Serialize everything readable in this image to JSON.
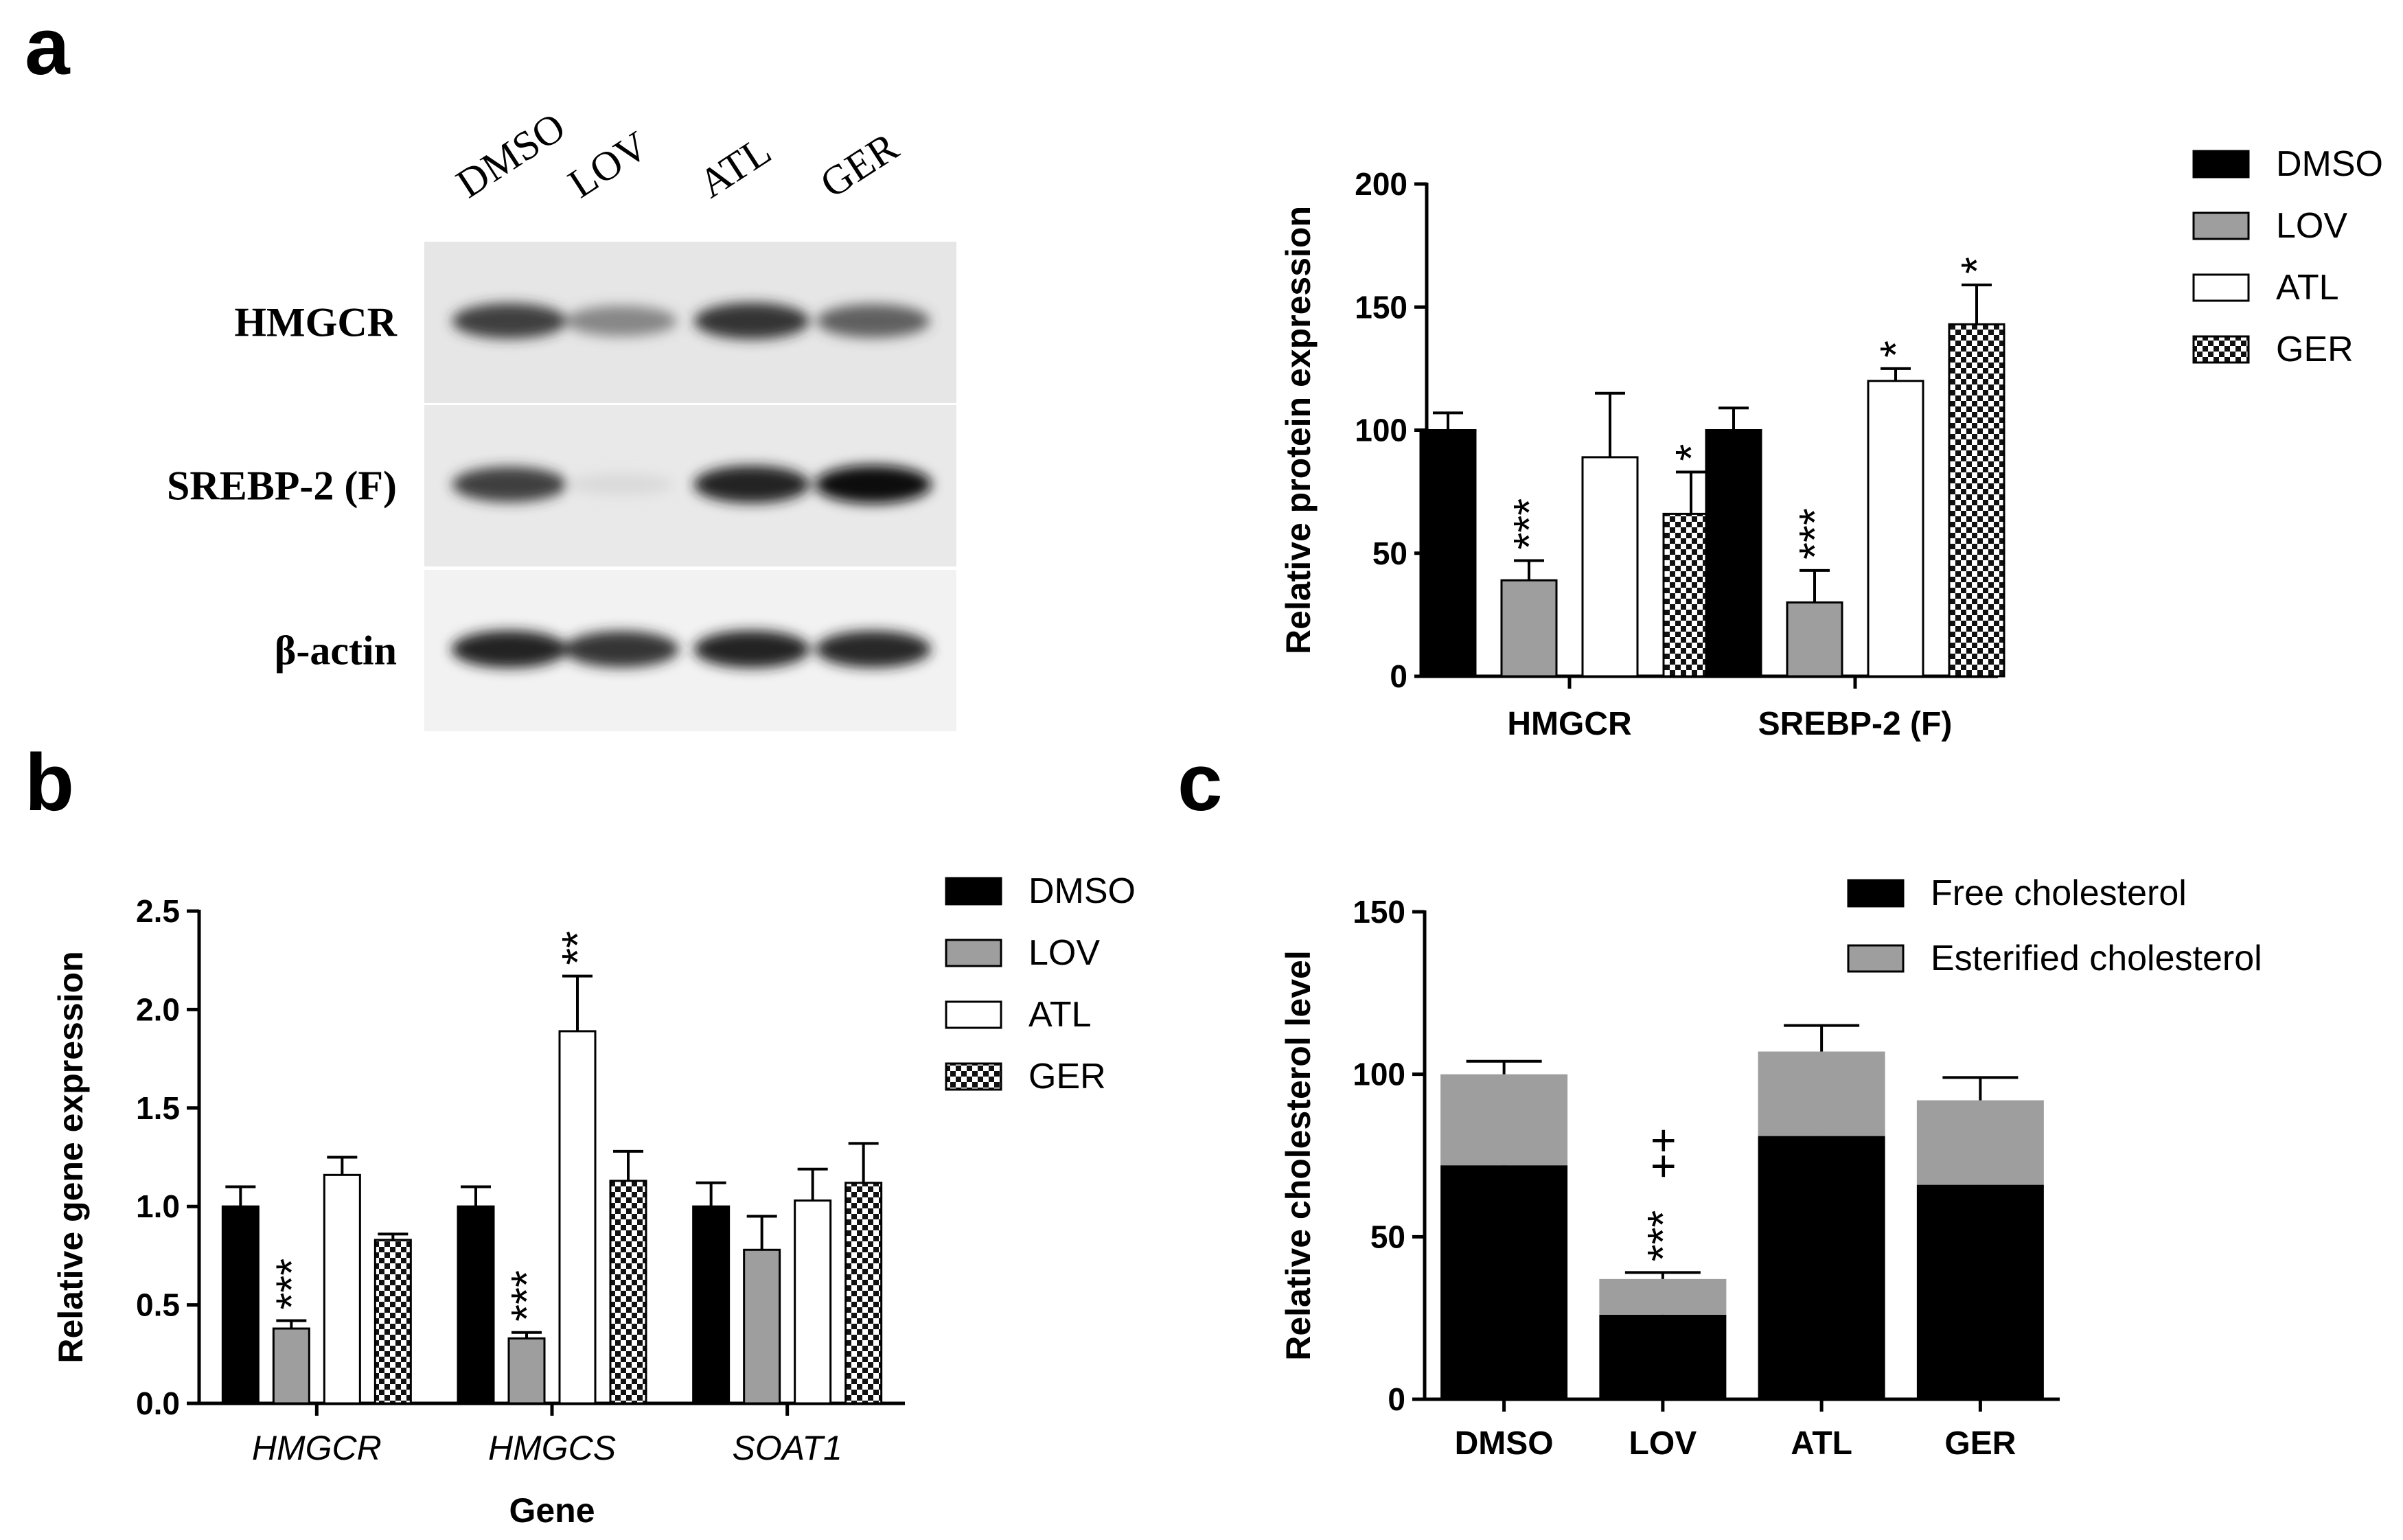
{
  "panels": {
    "a": "a",
    "b": "b",
    "c": "c"
  },
  "blot": {
    "lanes": [
      "DMSO",
      "LOV",
      "ATL",
      "GER"
    ],
    "rows": [
      {
        "label": "HMGCR",
        "band_intensity": [
          0.85,
          0.6,
          0.9,
          0.75
        ]
      },
      {
        "label": "SREBP-2 (F)",
        "band_intensity": [
          0.85,
          0.15,
          0.95,
          1.0
        ]
      },
      {
        "label": "β-actin",
        "band_intensity": [
          0.95,
          0.9,
          0.95,
          0.92
        ]
      }
    ]
  },
  "colors": {
    "DMSO": "#000000",
    "LOV": "#9e9e9e",
    "ATL": "#ffffff",
    "GER": "checkered",
    "Free cholesterol": "#000000",
    "Esterified cholesterol": "#9e9e9e"
  },
  "chart_data": [
    {
      "id": "a-chart",
      "type": "bar",
      "categories": [
        "HMGCR",
        "SREBP-2 (F)"
      ],
      "series": [
        {
          "name": "DMSO",
          "values": [
            100,
            100
          ],
          "errors": [
            7,
            9
          ]
        },
        {
          "name": "LOV",
          "values": [
            39,
            30
          ],
          "errors": [
            8,
            13
          ]
        },
        {
          "name": "ATL",
          "values": [
            89,
            120
          ],
          "errors": [
            26,
            5
          ]
        },
        {
          "name": "GER",
          "values": [
            66,
            143
          ],
          "errors": [
            17,
            16
          ]
        }
      ],
      "annotations": [
        {
          "category": "HMGCR",
          "series": "LOV",
          "text": "***"
        },
        {
          "category": "HMGCR",
          "series": "GER",
          "text": "*"
        },
        {
          "category": "SREBP-2 (F)",
          "series": "LOV",
          "text": "***"
        },
        {
          "category": "SREBP-2 (F)",
          "series": "ATL",
          "text": "*"
        },
        {
          "category": "SREBP-2 (F)",
          "series": "GER",
          "text": "*"
        }
      ],
      "ylabel": "Relative protein expression",
      "xlabel": "",
      "ylim": [
        0,
        200
      ],
      "yticks": [
        "0",
        "50",
        "100",
        "150",
        "200"
      ],
      "legend": "right",
      "legend_entries": [
        "DMSO",
        "LOV",
        "ATL",
        "GER"
      ]
    },
    {
      "id": "b-chart",
      "type": "bar",
      "categories": [
        "HMGCR",
        "HMGCS",
        "SOAT1"
      ],
      "series": [
        {
          "name": "DMSO",
          "values": [
            1.0,
            1.0,
            1.0
          ],
          "errors": [
            0.1,
            0.1,
            0.12
          ]
        },
        {
          "name": "LOV",
          "values": [
            0.38,
            0.33,
            0.78
          ],
          "errors": [
            0.04,
            0.03,
            0.17
          ]
        },
        {
          "name": "ATL",
          "values": [
            1.16,
            1.89,
            1.03
          ],
          "errors": [
            0.09,
            0.28,
            0.16
          ]
        },
        {
          "name": "GER",
          "values": [
            0.83,
            1.13,
            1.12
          ],
          "errors": [
            0.03,
            0.15,
            0.2
          ]
        }
      ],
      "annotations": [
        {
          "category": "HMGCR",
          "series": "LOV",
          "text": "***"
        },
        {
          "category": "HMGCS",
          "series": "LOV",
          "text": "***"
        },
        {
          "category": "HMGCS",
          "series": "ATL",
          "text": "**"
        }
      ],
      "ylabel": "Relative gene expression",
      "xlabel": "Gene",
      "ylim": [
        0,
        2.5
      ],
      "yticks": [
        "0.0",
        "0.5",
        "1.0",
        "1.5",
        "2.0",
        "2.5"
      ],
      "legend": "right",
      "legend_entries": [
        "DMSO",
        "LOV",
        "ATL",
        "GER"
      ]
    },
    {
      "id": "c-chart",
      "type": "bar",
      "stacked": true,
      "categories": [
        "DMSO",
        "LOV",
        "ATL",
        "GER"
      ],
      "series": [
        {
          "name": "Free cholesterol",
          "values": [
            72,
            26,
            81,
            66
          ],
          "errors": [
            8,
            5,
            13,
            14
          ]
        },
        {
          "name": "Esterified cholesterol",
          "values": [
            28,
            11,
            26,
            26
          ],
          "errors": [
            4,
            2,
            8,
            7
          ]
        }
      ],
      "annotations": [
        {
          "category": "LOV",
          "text": "***"
        },
        {
          "category": "LOV",
          "text": "++"
        }
      ],
      "ylabel": "Relative cholesterol level",
      "xlabel": "",
      "ylim": [
        0,
        150
      ],
      "yticks": [
        "0",
        "50",
        "100",
        "150"
      ],
      "legend": "top-right",
      "legend_entries": [
        "Free cholesterol",
        "Esterified cholesterol"
      ]
    }
  ]
}
